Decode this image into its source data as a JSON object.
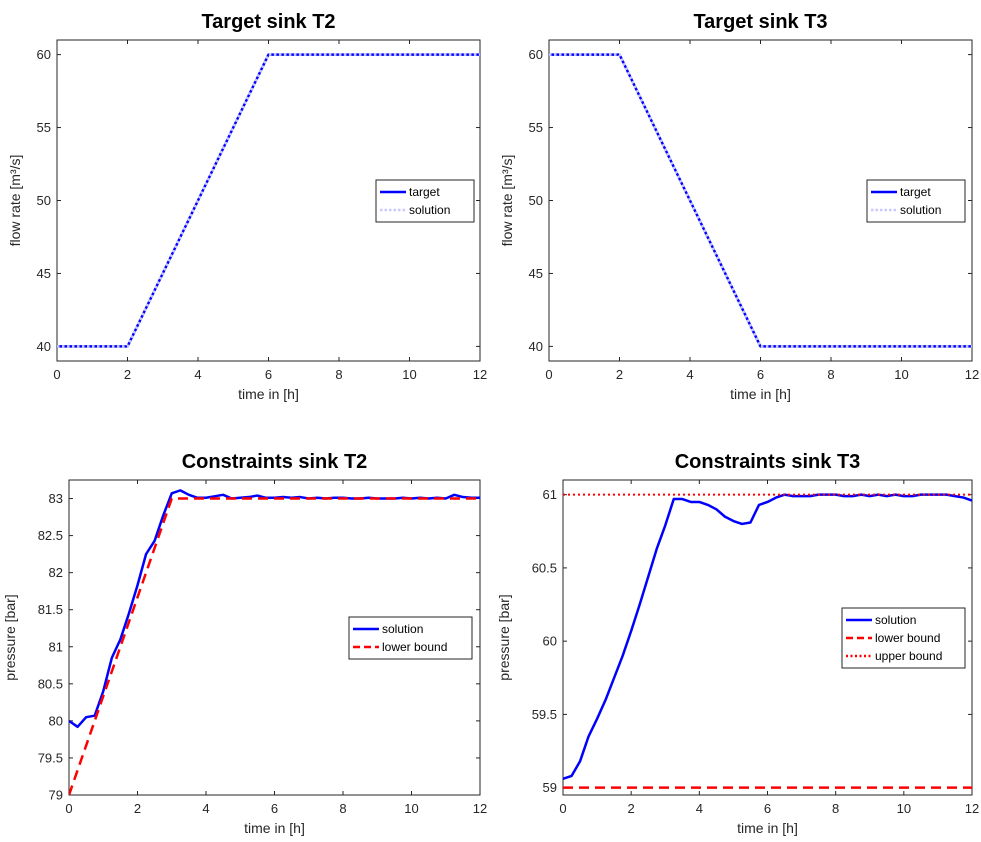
{
  "colors": {
    "target": "#0000ff",
    "solution": "#0000ff",
    "solution_dotted": "#c8c8ff",
    "bound": "#ff0000",
    "axis": "#262626"
  },
  "chart_data": [
    {
      "type": "line",
      "title": "Target sink T2",
      "xlabel": "time in [h]",
      "ylabel": "flow rate [m³/s]",
      "xlim": [
        0,
        12
      ],
      "ylim": [
        39,
        61
      ],
      "xticks": [
        0,
        2,
        4,
        6,
        8,
        10,
        12
      ],
      "yticks": [
        40,
        45,
        50,
        55,
        60
      ],
      "grid": false,
      "legend_position": "right",
      "series": [
        {
          "name": "target",
          "style": "solid",
          "color": "#0000ff",
          "x": [
            0,
            2,
            6,
            12
          ],
          "y": [
            40,
            40,
            60,
            60
          ]
        },
        {
          "name": "solution",
          "style": "dotted",
          "color": "#c8c8ff",
          "x": [
            0,
            2,
            6,
            12
          ],
          "y": [
            40,
            40,
            60,
            60
          ]
        }
      ]
    },
    {
      "type": "line",
      "title": "Target sink T3",
      "xlabel": "time in [h]",
      "ylabel": "flow rate [m³/s]",
      "xlim": [
        0,
        12
      ],
      "ylim": [
        39,
        61
      ],
      "xticks": [
        0,
        2,
        4,
        6,
        8,
        10,
        12
      ],
      "yticks": [
        40,
        45,
        50,
        55,
        60
      ],
      "grid": false,
      "legend_position": "right",
      "series": [
        {
          "name": "target",
          "style": "solid",
          "color": "#0000ff",
          "x": [
            0,
            2,
            6,
            12
          ],
          "y": [
            60,
            60,
            40,
            40
          ]
        },
        {
          "name": "solution",
          "style": "dotted",
          "color": "#c8c8ff",
          "x": [
            0,
            2,
            6,
            12
          ],
          "y": [
            60,
            60,
            40,
            40
          ]
        }
      ]
    },
    {
      "type": "line",
      "title": "Constraints sink T2",
      "xlabel": "time in [h]",
      "ylabel": "pressure [bar]",
      "xlim": [
        0,
        12
      ],
      "ylim": [
        79,
        83.25
      ],
      "xticks": [
        0,
        2,
        4,
        6,
        8,
        10,
        12
      ],
      "yticks": [
        79,
        79.5,
        80,
        80.5,
        81,
        81.5,
        82,
        82.5,
        83
      ],
      "grid": false,
      "legend_position": "right",
      "series": [
        {
          "name": "solution",
          "style": "solid",
          "color": "#0000ff",
          "x": [
            0,
            0.25,
            0.5,
            0.75,
            1.0,
            1.25,
            1.5,
            1.75,
            2.0,
            2.25,
            2.5,
            2.75,
            3.0,
            3.25,
            3.5,
            3.75,
            4.0,
            4.25,
            4.5,
            4.75,
            5.0,
            5.25,
            5.5,
            5.75,
            6.0,
            6.25,
            6.5,
            6.75,
            7.0,
            7.25,
            7.5,
            7.75,
            8.0,
            8.25,
            8.5,
            8.75,
            9.0,
            9.25,
            9.5,
            9.75,
            10.0,
            10.25,
            10.5,
            10.75,
            11.0,
            11.25,
            11.5,
            11.75,
            12.0
          ],
          "y": [
            80.0,
            79.92,
            80.05,
            80.07,
            80.4,
            80.85,
            81.1,
            81.45,
            81.83,
            82.25,
            82.43,
            82.77,
            83.07,
            83.11,
            83.05,
            83.01,
            83.01,
            83.03,
            83.05,
            83.0,
            83.01,
            83.02,
            83.04,
            83.01,
            83.01,
            83.02,
            83.01,
            83.02,
            83.0,
            83.01,
            83.0,
            83.01,
            83.01,
            83.0,
            83.0,
            83.01,
            83.0,
            83.0,
            83.0,
            83.01,
            83.0,
            83.01,
            83.0,
            83.01,
            83.0,
            83.05,
            83.02,
            83.01,
            83.01
          ]
        },
        {
          "name": "lower bound",
          "style": "dashed",
          "color": "#ff0000",
          "x": [
            0,
            3,
            12
          ],
          "y": [
            79,
            83,
            83
          ]
        }
      ]
    },
    {
      "type": "line",
      "title": "Constraints sink T3",
      "xlabel": "time in [h]",
      "ylabel": "pressure [bar]",
      "xlim": [
        0,
        12
      ],
      "ylim": [
        58.95,
        61.1
      ],
      "xticks": [
        0,
        2,
        4,
        6,
        8,
        10,
        12
      ],
      "yticks": [
        59,
        59.5,
        60,
        60.5,
        61
      ],
      "grid": false,
      "legend_position": "right",
      "series": [
        {
          "name": "solution",
          "style": "solid",
          "color": "#0000ff",
          "x": [
            0,
            0.25,
            0.5,
            0.75,
            1.0,
            1.25,
            1.5,
            1.75,
            2.0,
            2.25,
            2.5,
            2.75,
            3.0,
            3.25,
            3.5,
            3.75,
            4.0,
            4.25,
            4.5,
            4.75,
            5.0,
            5.25,
            5.5,
            5.75,
            6.0,
            6.25,
            6.5,
            6.75,
            7.0,
            7.25,
            7.5,
            7.75,
            8.0,
            8.25,
            8.5,
            8.75,
            9.0,
            9.25,
            9.5,
            9.75,
            10.0,
            10.25,
            10.5,
            10.75,
            11.0,
            11.25,
            11.5,
            11.75,
            12.0
          ],
          "y": [
            59.06,
            59.08,
            59.18,
            59.35,
            59.47,
            59.6,
            59.75,
            59.9,
            60.07,
            60.25,
            60.44,
            60.63,
            60.79,
            60.97,
            60.97,
            60.95,
            60.95,
            60.93,
            60.9,
            60.85,
            60.82,
            60.8,
            60.81,
            60.93,
            60.95,
            60.98,
            61.0,
            60.99,
            60.99,
            60.99,
            61.0,
            61.0,
            61.0,
            60.99,
            60.99,
            61.0,
            60.99,
            61.0,
            60.99,
            61.0,
            60.99,
            60.99,
            61.0,
            61.0,
            61.0,
            61.0,
            60.99,
            60.98,
            60.96
          ]
        },
        {
          "name": "lower bound",
          "style": "dashed",
          "color": "#ff0000",
          "x": [
            0,
            12
          ],
          "y": [
            59,
            59
          ]
        },
        {
          "name": "upper bound",
          "style": "dotted",
          "color": "#ff0000",
          "x": [
            0,
            12
          ],
          "y": [
            61,
            61
          ]
        }
      ]
    }
  ]
}
